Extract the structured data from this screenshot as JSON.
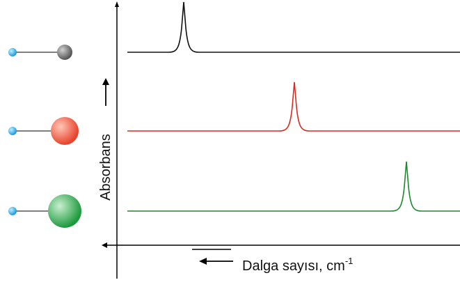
{
  "y_label": "Absorbans",
  "x_label": "Dalga sayısı, cm",
  "x_label_sup": "-1"
}
